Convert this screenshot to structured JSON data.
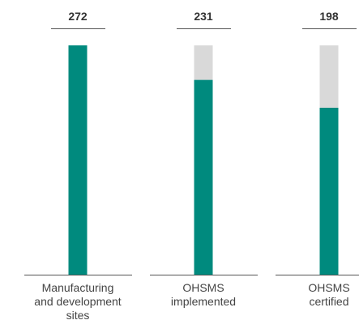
{
  "chart_data": {
    "type": "bar",
    "categories": [
      "Manufacturing\nand development\nsites",
      "OHSMS\nimplemented",
      "OHSMS\ncertified"
    ],
    "values": [
      272,
      231,
      198
    ],
    "color": "#008a7e",
    "background_color": "#d9d9d9",
    "ylim": [
      0,
      272
    ]
  }
}
